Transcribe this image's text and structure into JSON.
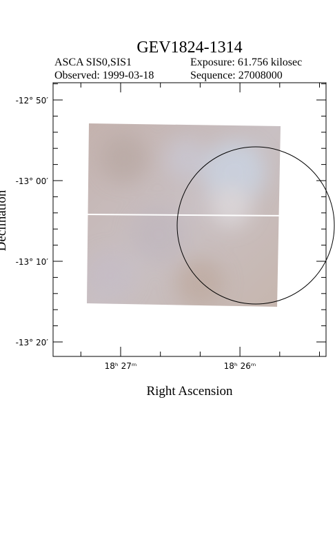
{
  "header": {
    "title": "GEV1824-1314",
    "instrument": "ASCA SIS0,SIS1",
    "exposure": "Exposure: 61.756 kilosec",
    "observed": "Observed: 1999-03-18",
    "sequence": "Sequence: 27008000"
  },
  "axes": {
    "x_label": "Right Ascension",
    "y_label": "Declination",
    "x_ticks": [
      "18ʰ 27ᵐ",
      "18ʰ 26ᵐ"
    ],
    "y_ticks": [
      "-12° 50′",
      "-13° 00′",
      "-13° 10′",
      "-13° 20′"
    ]
  }
}
